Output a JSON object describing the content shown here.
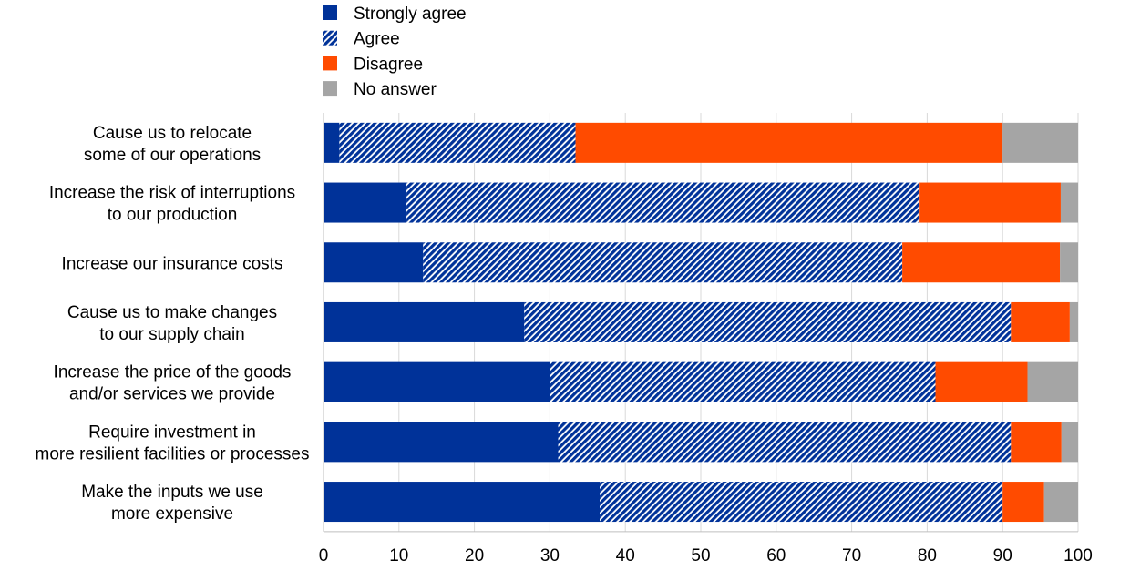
{
  "chart_data": {
    "type": "bar",
    "orientation": "horizontal",
    "stacked": true,
    "categories": [
      [
        "Cause us to relocate",
        "some of our operations"
      ],
      [
        "Increase the risk of interruptions",
        "to our production"
      ],
      [
        "Increase our insurance costs"
      ],
      [
        "Cause us to make changes",
        "to our supply chain"
      ],
      [
        "Increase the price of the goods",
        "and/or services we provide"
      ],
      [
        "Require investment in",
        "more resilient facilities or processes"
      ],
      [
        "Make the inputs we use",
        "more expensive"
      ]
    ],
    "series": [
      {
        "name": "Strongly agree",
        "color": "#003299",
        "pattern": "solid",
        "values": [
          2.1,
          11.0,
          13.2,
          26.6,
          30.0,
          31.1,
          36.6
        ]
      },
      {
        "name": "Agree",
        "color": "#003299",
        "pattern": "hatched",
        "values": [
          31.3,
          68.0,
          63.5,
          64.5,
          51.1,
          60.0,
          53.4
        ]
      },
      {
        "name": "Disagree",
        "color": "#ff4b00",
        "pattern": "solid",
        "values": [
          56.6,
          18.7,
          20.9,
          7.8,
          12.2,
          6.7,
          5.5
        ]
      },
      {
        "name": "No answer",
        "color": "#a5a5a5",
        "pattern": "solid",
        "values": [
          10.0,
          2.3,
          2.4,
          1.1,
          6.7,
          2.2,
          4.5
        ]
      }
    ],
    "xlim": [
      0,
      100
    ],
    "x_ticks": [
      0,
      10,
      20,
      30,
      40,
      50,
      60,
      70,
      80,
      90,
      100
    ],
    "grid": "vertical",
    "legend": "top-left",
    "title": "",
    "xlabel": "",
    "ylabel": ""
  }
}
